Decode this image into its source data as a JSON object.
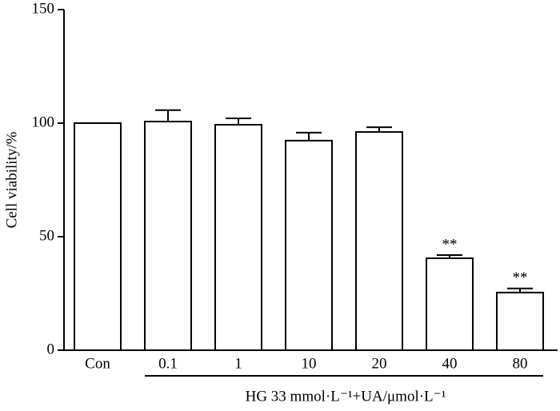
{
  "chart_data": {
    "type": "bar",
    "ylabel": "Cell viability/%",
    "xlabel": "HG 33 mmol·L⁻¹+UA/μmol·L⁻¹",
    "categories": [
      "Con",
      "0.1",
      "1",
      "10",
      "20",
      "40",
      "80"
    ],
    "values": [
      100,
      100.7,
      99.3,
      92.3,
      96.1,
      40.5,
      25.4
    ],
    "errors": [
      null,
      5,
      2.8,
      3.5,
      2.1,
      1.4,
      1.8
    ],
    "annotations": [
      null,
      null,
      null,
      null,
      null,
      "**",
      "**"
    ],
    "color": "#ffffff",
    "ylim": [
      0,
      150
    ],
    "yticks": [
      0,
      50,
      100,
      150
    ],
    "grid": false
  }
}
